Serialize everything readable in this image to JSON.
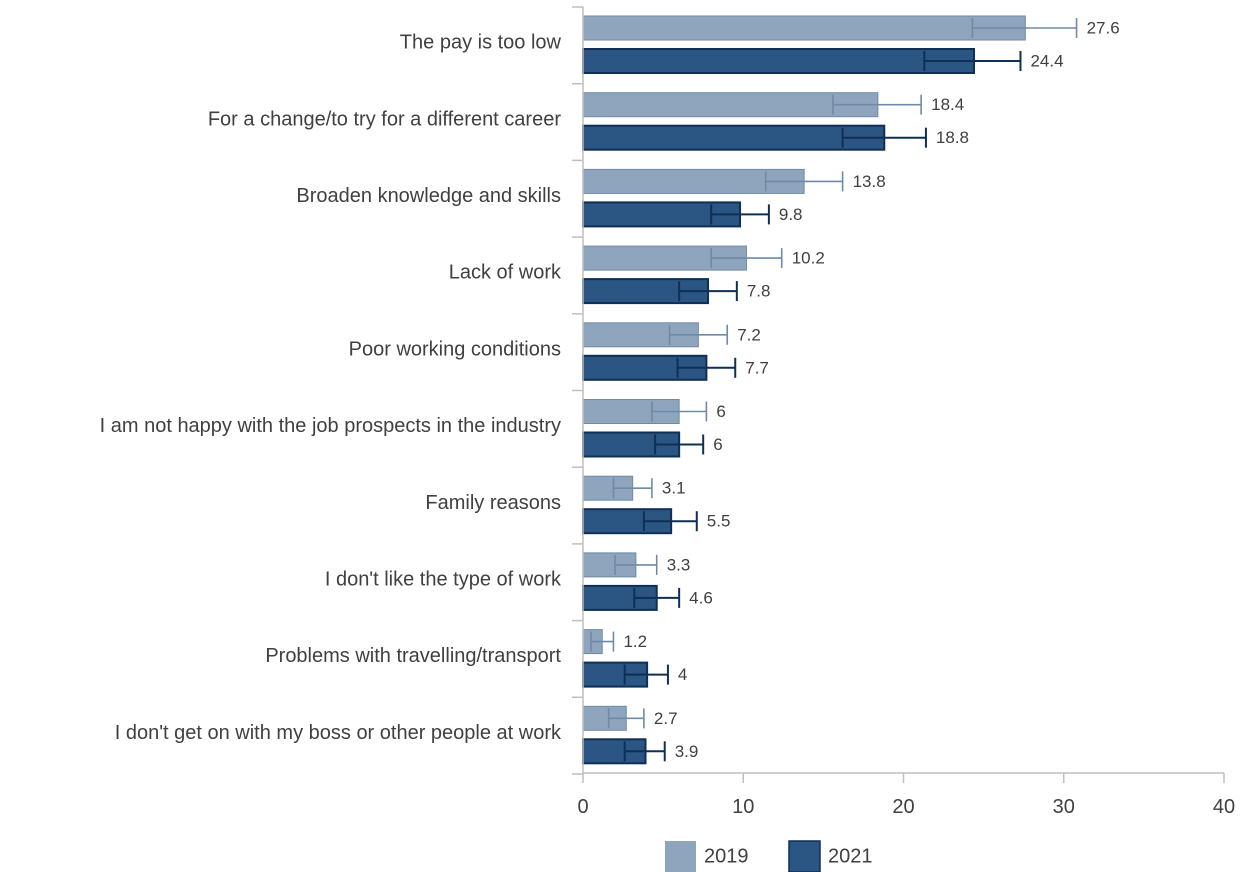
{
  "chart_data": {
    "type": "bar",
    "orientation": "horizontal",
    "categories": [
      "The pay is too low",
      "For a change/to try for a different career",
      "Broaden knowledge and skills",
      "Lack of work",
      "Poor working conditions",
      "I am not happy with the job prospects in the industry",
      "Family reasons",
      "I don't like the type of work",
      "Problems with travelling/transport",
      "I don't get on with my boss or other people at work"
    ],
    "series": [
      {
        "name": "2019",
        "color": "#8ea5bd",
        "stroke": "#6f8aa6",
        "values": [
          27.6,
          18.4,
          13.8,
          10.2,
          7.2,
          6,
          3.1,
          3.3,
          1.2,
          2.7
        ],
        "labels": [
          "27.6",
          "18.4",
          "13.8",
          "10.2",
          "7.2",
          "6",
          "3.1",
          "3.3",
          "1.2",
          "2.7"
        ],
        "error_low": [
          24.3,
          15.6,
          11.4,
          8.0,
          5.4,
          4.3,
          1.9,
          2.0,
          0.5,
          1.6
        ],
        "error_high": [
          30.8,
          21.1,
          16.2,
          12.4,
          9.0,
          7.7,
          4.3,
          4.6,
          1.9,
          3.8
        ]
      },
      {
        "name": "2021",
        "color": "#2b5683",
        "stroke": "#0f2f55",
        "values": [
          24.4,
          18.8,
          9.8,
          7.8,
          7.7,
          6,
          5.5,
          4.6,
          4,
          3.9
        ],
        "labels": [
          "24.4",
          "18.8",
          "9.8",
          "7.8",
          "7.7",
          "6",
          "5.5",
          "4.6",
          "4",
          "3.9"
        ],
        "error_low": [
          21.3,
          16.2,
          8.0,
          6.0,
          5.9,
          4.5,
          3.8,
          3.2,
          2.6,
          2.6
        ],
        "error_high": [
          27.3,
          21.4,
          11.6,
          9.6,
          9.5,
          7.5,
          7.1,
          6.0,
          5.3,
          5.1
        ]
      }
    ],
    "x_ticks": [
      0,
      10,
      20,
      30,
      40
    ],
    "xlim": [
      0,
      40
    ],
    "title": "",
    "xlabel": "",
    "ylabel": "",
    "legend": {
      "position": "bottom",
      "entries": [
        "2019",
        "2021"
      ]
    },
    "grid": false
  }
}
